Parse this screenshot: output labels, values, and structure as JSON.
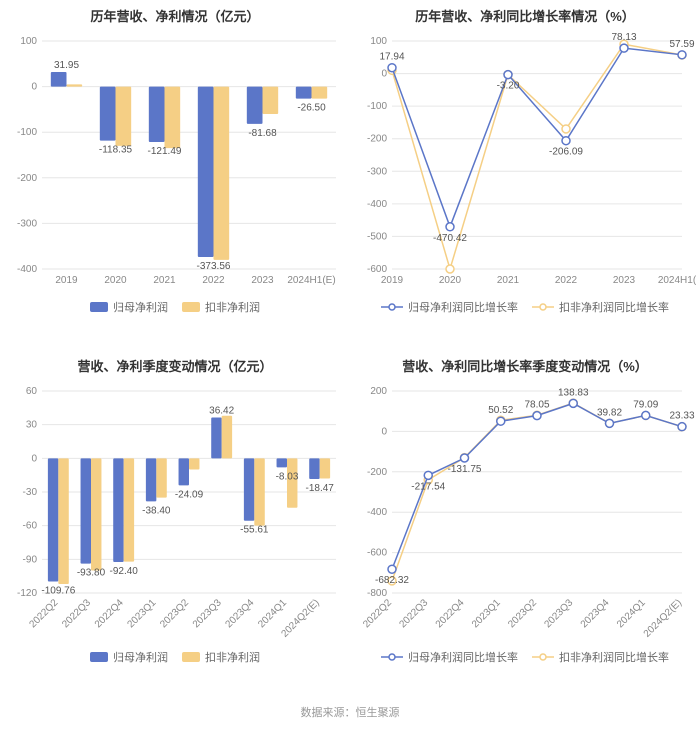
{
  "colors": {
    "series1": "#5b76c8",
    "series2": "#f5cf85",
    "grid": "#e6e6e6",
    "axis_text": "#888888",
    "title": "#333333",
    "label": "#555555",
    "bg": "#ffffff"
  },
  "footer": "数据来源：恒生聚源",
  "chart1": {
    "type": "bar",
    "title": "历年营收、净利情况（亿元）",
    "categories": [
      "2019",
      "2020",
      "2021",
      "2022",
      "2023",
      "2024H1(E)"
    ],
    "series": [
      {
        "name": "归母净利润",
        "color": "#5b76c8",
        "values": [
          31.95,
          -118.35,
          -121.49,
          -373.56,
          -81.68,
          -26.5
        ]
      },
      {
        "name": "扣非净利润",
        "color": "#f5cf85",
        "values": [
          5,
          -130,
          -135,
          -380,
          -60,
          -26.5
        ]
      }
    ],
    "label_values": [
      31.95,
      -118.35,
      -121.49,
      -373.56,
      -81.68,
      -26.5
    ],
    "ymin": -400,
    "ymax": 100,
    "ystep": 100,
    "bar_group_width": 0.64,
    "title_fontsize": 13,
    "label_fontsize": 10
  },
  "chart2": {
    "type": "line",
    "title": "历年营收、净利同比增长率情况（%）",
    "categories": [
      "2019",
      "2020",
      "2021",
      "2022",
      "2023",
      "2024H1(E)"
    ],
    "series": [
      {
        "name": "归母净利润同比增长率",
        "color": "#5b76c8",
        "values": [
          17.94,
          -470.42,
          -3.2,
          -206.09,
          78.13,
          57.59
        ]
      },
      {
        "name": "扣非净利润同比增长率",
        "color": "#f5cf85",
        "values": [
          10,
          -600,
          -3.2,
          -170,
          90,
          57
        ]
      }
    ],
    "label_values": [
      17.94,
      -470.42,
      -3.2,
      -206.09,
      78.13,
      57.59
    ],
    "ymin": -600,
    "ymax": 100,
    "ystep": 100,
    "marker": "circle",
    "marker_size": 4,
    "line_width": 1.5,
    "title_fontsize": 13,
    "label_fontsize": 10
  },
  "chart3": {
    "type": "bar",
    "title": "营收、净利季度变动情况（亿元）",
    "categories": [
      "2022Q2",
      "2022Q3",
      "2022Q4",
      "2023Q1",
      "2023Q2",
      "2023Q3",
      "2023Q4",
      "2024Q1",
      "2024Q2(E)"
    ],
    "series": [
      {
        "name": "归母净利润",
        "color": "#5b76c8",
        "values": [
          -109.76,
          -93.8,
          -92.4,
          -38.4,
          -24.09,
          36.42,
          -55.61,
          -8.03,
          -18.47
        ]
      },
      {
        "name": "扣非净利润",
        "color": "#f5cf85",
        "values": [
          -112,
          -100,
          -92,
          -35,
          -10,
          38,
          -60,
          -44,
          -18
        ]
      }
    ],
    "label_values": [
      -109.76,
      -93.8,
      -92.4,
      -38.4,
      -24.09,
      36.42,
      -55.61,
      -8.03,
      -18.47
    ],
    "ymin": -120,
    "ymax": 60,
    "ystep": 30,
    "bar_group_width": 0.64,
    "rotate_x": true,
    "title_fontsize": 13,
    "label_fontsize": 10
  },
  "chart4": {
    "type": "line",
    "title": "营收、净利同比增长率季度变动情况（%）",
    "categories": [
      "2022Q2",
      "2022Q3",
      "2022Q4",
      "2023Q1",
      "2023Q2",
      "2023Q3",
      "2023Q4",
      "2024Q1",
      "2024Q2(E)"
    ],
    "series": [
      {
        "name": "归母净利润同比增长率",
        "color": "#5b76c8",
        "values": [
          -682.32,
          -217.54,
          -131.75,
          50.52,
          78.05,
          138.83,
          39.82,
          79.09,
          23.33
        ]
      },
      {
        "name": "扣非净利润同比增长率",
        "color": "#f5cf85",
        "values": [
          -740,
          -240,
          -130,
          55,
          80,
          140,
          40,
          79,
          23
        ]
      }
    ],
    "label_values": [
      -682.32,
      -217.54,
      -131.75,
      50.52,
      78.05,
      138.83,
      39.82,
      79.09,
      23.33
    ],
    "ymin": -800,
    "ymax": 200,
    "ystep": 200,
    "marker": "circle",
    "marker_size": 4,
    "line_width": 1.5,
    "rotate_x": true,
    "title_fontsize": 13,
    "label_fontsize": 10
  }
}
